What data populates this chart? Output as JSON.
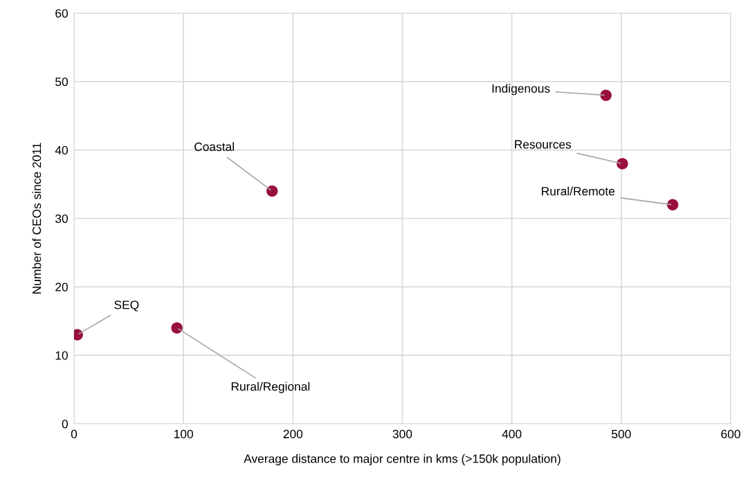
{
  "chart_data": {
    "type": "scatter",
    "xlabel": "Average distance to major centre in kms (>150k population)",
    "ylabel": "Number of CEOs since 2011",
    "x": [
      3,
      94,
      181,
      486,
      501,
      547
    ],
    "series": [
      {
        "color": "#990f3d",
        "values": [
          13,
          14,
          34,
          48,
          38,
          32
        ]
      }
    ],
    "xlim": [
      0,
      600
    ],
    "xticks": [
      0,
      100,
      200,
      300,
      400,
      500,
      600
    ],
    "ylim": [
      0,
      60
    ],
    "yticks": [
      0,
      10,
      20,
      30,
      40,
      50,
      60
    ],
    "grid": true,
    "legend": false,
    "marker": "circle",
    "annotations": [
      {
        "text": "SEQ",
        "x": 3,
        "y": 13
      },
      {
        "text": "Rural/Regional",
        "x": 94,
        "y": 14
      },
      {
        "text": "Coastal",
        "x": 181,
        "y": 34
      },
      {
        "text": "Indigenous",
        "x": 486,
        "y": 48
      },
      {
        "text": "Resources",
        "x": 501,
        "y": 38
      },
      {
        "text": "Rural/Remote",
        "x": 547,
        "y": 32
      }
    ]
  }
}
